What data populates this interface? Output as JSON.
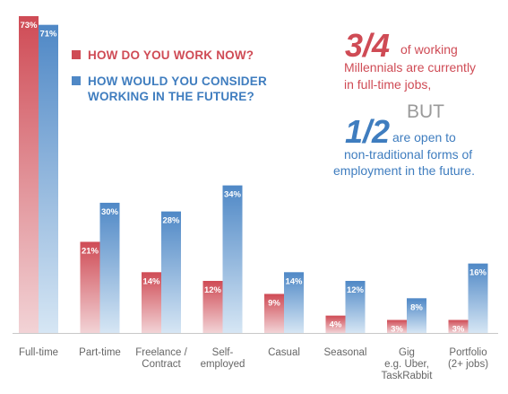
{
  "colors": {
    "series1": "#cf4b55",
    "series1_light": "#f2d3d6",
    "series2": "#4f88c6",
    "series2_light": "#d6e6f4",
    "axis": "#c9c9c9",
    "category_text": "#666666"
  },
  "chart_data": {
    "type": "bar",
    "categories": [
      "Full-time",
      "Part-time",
      "Freelance / Contract",
      "Self- employed",
      "Casual",
      "Seasonal",
      "Gig e.g. Uber, TaskRabbit",
      "Portfolio (2+ jobs)"
    ],
    "category_lines": [
      [
        "Full-time"
      ],
      [
        "Part-time"
      ],
      [
        "Freelance /",
        "Contract"
      ],
      [
        "Self-",
        "employed"
      ],
      [
        "Casual"
      ],
      [
        "Seasonal"
      ],
      [
        "Gig",
        "e.g. Uber,",
        "TaskRabbit"
      ],
      [
        "Portfolio",
        "(2+ jobs)"
      ]
    ],
    "series": [
      {
        "name": "HOW DO YOU WORK NOW?",
        "values": [
          73,
          21,
          14,
          12,
          9,
          4,
          3,
          3
        ]
      },
      {
        "name": "HOW WOULD YOU CONSIDER WORKING IN THE FUTURE?",
        "values": [
          71,
          30,
          28,
          34,
          14,
          12,
          8,
          16
        ]
      }
    ],
    "value_suffix": "%",
    "ylim": [
      0,
      73
    ],
    "grid": false,
    "legend_position": "top-center"
  },
  "callouts": {
    "fraction1": "3/4",
    "text1_line1": "of working",
    "text1_line2": "Millennials are currently",
    "text1_line3": "in full-time jobs,",
    "connector": "BUT",
    "fraction2": "1/2",
    "text2_line1": "are open to",
    "text2_line2": "non-traditional forms of",
    "text2_line3": "employment in the future."
  }
}
